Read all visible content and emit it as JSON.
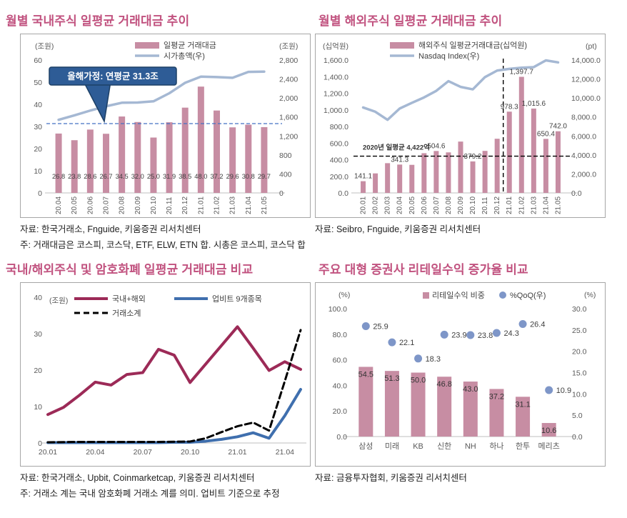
{
  "colors": {
    "title": "#c1527f",
    "bar_pink": "#c78da3",
    "line_bluegray": "#a5b8d3",
    "dashed_blue": "#4472c4",
    "callout_bg": "#2e5c96",
    "callout_border": "#1d4066",
    "maroon": "#9c2a57",
    "upbit_blue": "#3f6fae",
    "dot_blue": "#7e96c8",
    "axis_text": "#595959",
    "label_text": "#404040",
    "black": "#000000"
  },
  "panels": [
    {
      "id": "domestic",
      "title": "월별 국내주식 일평균 거래대금 추이",
      "source": "자료: 한국거래소, Fnguide, 키움증권 리서치센터",
      "note": "주: 거래대금은 코스피, 코스닥, ETF, ELW, ETN 합. 시총은 코스피, 코스닥 합"
    },
    {
      "id": "overseas",
      "title": "월별 해외주식 일평균 거래대금 추이",
      "source": "자료: Seibro, Fnguide, 키움증권 리서치센터"
    },
    {
      "id": "crypto",
      "title": "국내/해외주식 및 암호화폐 일평균 거래대금 비교",
      "source": "자료: 한국거래소, Upbit, Coinmarketcap, 키움증권 리서치센터",
      "note": "주: 거래소 계는 국내 암호화폐 거래소 계를 의미. 업비트 기준으로 추정"
    },
    {
      "id": "brokers",
      "title": "주요 대형 증권사 리테일수익 증가율 비교",
      "source": "자료: 금융투자협회, 키움증권 리서치센터"
    }
  ],
  "chart_data": [
    {
      "id": "domestic",
      "type": "bar",
      "title": "월별 국내주식 일평균 거래대금 추이",
      "categories": [
        "20.04",
        "20.05",
        "20.06",
        "20.07",
        "20.08",
        "20.09",
        "20.10",
        "20.11",
        "20.12",
        "21.01",
        "21.02",
        "21.03",
        "21.04",
        "21.05"
      ],
      "series": [
        {
          "name": "일평균 거래대금",
          "type": "bar",
          "axis": "left",
          "values": [
            26.8,
            23.8,
            28.6,
            26.7,
            34.5,
            32.0,
            25.0,
            31.9,
            38.5,
            48.0,
            37.2,
            29.6,
            30.8,
            29.7
          ],
          "labels": [
            "26.8",
            "23.8",
            "28.6",
            "26.7",
            "34.5",
            "32.0",
            "25.0",
            "31.9",
            "38.5",
            "48.0",
            "37.2",
            "29.6",
            "30.8",
            "29.7"
          ]
        },
        {
          "name": "시가총액(우)",
          "type": "line",
          "axis": "right",
          "values": [
            1540,
            1635,
            1735,
            1825,
            1900,
            1905,
            1930,
            2100,
            2320,
            2450,
            2440,
            2425,
            2550,
            2555
          ]
        }
      ],
      "left_axis": {
        "unit": "(조원)",
        "min": 0,
        "max": 60,
        "step": 10,
        "ticks": [
          "0",
          "10",
          "20",
          "30",
          "40",
          "50",
          "60"
        ]
      },
      "right_axis": {
        "unit": "(조원)",
        "min": 0,
        "max": 2800,
        "step": 400,
        "ticks": [
          "0",
          "400",
          "800",
          "1,200",
          "1,600",
          "2,000",
          "2,400",
          "2,800"
        ]
      },
      "annotations": {
        "callout_text": "올해가정: 연평균 31.3조",
        "hline_value": 31.3
      },
      "legend_position": "top",
      "grid": false
    },
    {
      "id": "overseas",
      "type": "bar",
      "title": "월별 해외주식 일평균 거래대금 추이",
      "categories": [
        "20.01",
        "20.02",
        "20.03",
        "20.04",
        "20.05",
        "20.06",
        "20.07",
        "20.08",
        "20.09",
        "20.10",
        "20.11",
        "20.12",
        "21.01",
        "21.02",
        "21.03",
        "21.04",
        "21.05"
      ],
      "series": [
        {
          "name": "해외주식 일평균거래대금(십억원)",
          "type": "bar",
          "axis": "left",
          "values": [
            141.1,
            235,
            358,
            341.3,
            338,
            478,
            504.6,
            488,
            618,
            379.2,
            506,
            652,
            978.3,
            1397.7,
            1015.6,
            650.4,
            742.0
          ],
          "labels": [
            "141.1",
            null,
            null,
            "341.3",
            null,
            null,
            "504.6",
            null,
            null,
            "379.2",
            null,
            null,
            "978.3",
            "1,397.7",
            "1,015.6",
            "650.4",
            "742.0"
          ]
        },
        {
          "name": "Nasdaq Index(우)",
          "type": "line",
          "axis": "right",
          "values": [
            9000,
            8550,
            7700,
            8890,
            9490,
            10060,
            10750,
            11775,
            11170,
            10910,
            12200,
            12890,
            13070,
            13190,
            13250,
            13960,
            13750
          ]
        }
      ],
      "left_axis": {
        "unit": "(십억원)",
        "min": 0,
        "max": 1600,
        "step": 200,
        "ticks": [
          "0.0",
          "200.0",
          "400.0",
          "600.0",
          "800.0",
          "1,000.0",
          "1,200.0",
          "1,400.0",
          "1,600.0"
        ]
      },
      "right_axis": {
        "unit": "(pt)",
        "min": 0,
        "max": 14000,
        "step": 2000,
        "ticks": [
          "0.0",
          "2,000.0",
          "4,000.0",
          "6,000.0",
          "8,000.0",
          "10,000.0",
          "12,000.0",
          "14,000.0"
        ]
      },
      "annotations": {
        "avg_text": "2020년 일평균 4,422억",
        "hline_value": 442.2,
        "vline_after": "20.12"
      },
      "legend_position": "top",
      "grid": false
    },
    {
      "id": "crypto",
      "type": "line",
      "title": "국내/해외주식 및 암호화폐 일평균 거래대금 비교",
      "categories": [
        "20.01",
        "20.02",
        "20.03",
        "20.04",
        "20.05",
        "20.06",
        "20.07",
        "20.08",
        "20.09",
        "20.10",
        "20.11",
        "20.12",
        "21.01",
        "21.02",
        "21.03",
        "21.04",
        "21.05"
      ],
      "x_ticks": [
        "20.01",
        "20.04",
        "20.07",
        "20.10",
        "21.01",
        "21.04"
      ],
      "series": [
        {
          "name": "국내+해외",
          "style": "solid",
          "color_key": "maroon",
          "values": [
            7.8,
            9.8,
            13.1,
            16.7,
            15.9,
            18.8,
            19.3,
            25.7,
            24.1,
            16.6,
            21.7,
            26.8,
            31.9,
            26.0,
            19.9,
            22.3,
            20.2
          ]
        },
        {
          "name": "업비트 9개종목",
          "style": "solid",
          "color_key": "upbit_blue",
          "values": [
            0.1,
            0.1,
            0.1,
            0.1,
            0.1,
            0.1,
            0.1,
            0.1,
            0.2,
            0.2,
            0.5,
            1.0,
            1.7,
            2.8,
            1.3,
            7.5,
            14.7
          ]
        },
        {
          "name": "거래소계",
          "style": "dashed",
          "color_key": "black",
          "values": [
            0.2,
            0.25,
            0.3,
            0.3,
            0.3,
            0.3,
            0.3,
            0.3,
            0.35,
            0.4,
            1.3,
            3.0,
            4.6,
            5.6,
            3.4,
            17.0,
            31.0
          ]
        }
      ],
      "left_axis": {
        "unit": "(조원)",
        "min": 0,
        "max": 40,
        "step": 10,
        "ticks": [
          "0",
          "10",
          "20",
          "30",
          "40"
        ]
      },
      "legend_position": "top",
      "grid": false
    },
    {
      "id": "brokers",
      "type": "bar",
      "title": "주요 대형 증권사 리테일수익 증가율 비교",
      "categories": [
        "삼성",
        "미래",
        "KB",
        "신한",
        "NH",
        "하나",
        "한투",
        "메리츠"
      ],
      "series": [
        {
          "name": "리테일수익 비중",
          "type": "bar",
          "axis": "left",
          "values": [
            54.5,
            51.3,
            50.0,
            46.8,
            43.0,
            37.2,
            31.1,
            10.6
          ],
          "labels": [
            "54.5",
            "51.3",
            "50.0",
            "46.8",
            "43.0",
            "37.2",
            "31.1",
            "10.6"
          ]
        },
        {
          "name": "%QoQ(우)",
          "type": "scatter",
          "axis": "right",
          "values": [
            25.9,
            22.1,
            18.3,
            23.9,
            23.8,
            24.3,
            26.4,
            10.9
          ],
          "labels": [
            "25.9",
            "22.1",
            "18.3",
            "23.9",
            "23.8",
            "24.3",
            "26.4",
            "10.9"
          ]
        }
      ],
      "left_axis": {
        "unit": "(%)",
        "min": 0,
        "max": 100,
        "step": 20,
        "ticks": [
          "0.0",
          "20.0",
          "40.0",
          "60.0",
          "80.0",
          "100.0"
        ]
      },
      "right_axis": {
        "unit": "(%)",
        "min": 0,
        "max": 30,
        "step": 5,
        "ticks": [
          "0.0",
          "5.0",
          "10.0",
          "15.0",
          "20.0",
          "25.0",
          "30.0"
        ]
      },
      "legend_position": "top",
      "grid": false
    }
  ]
}
